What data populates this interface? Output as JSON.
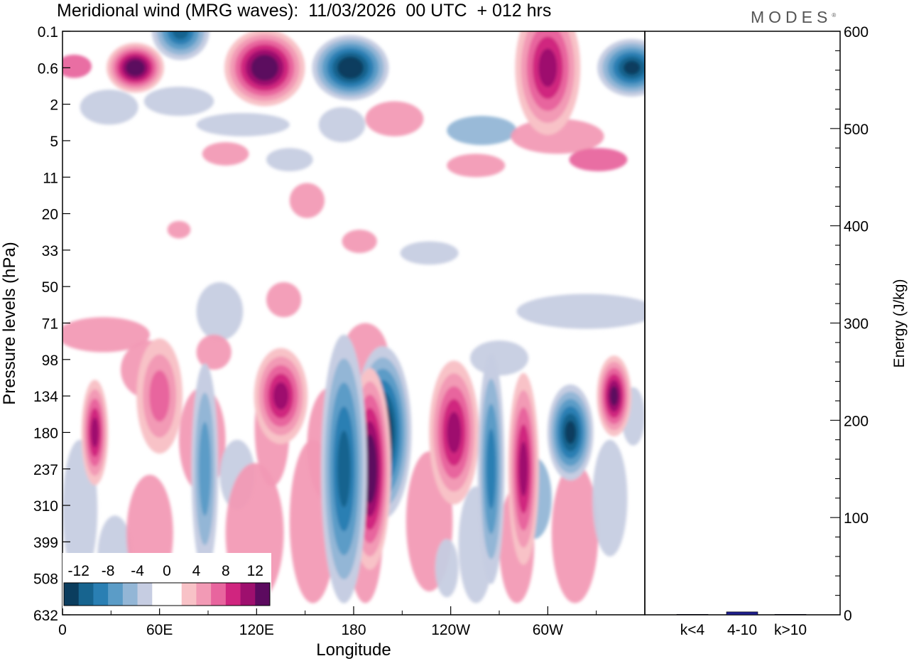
{
  "header": {
    "title": "Meridional wind (MRG waves):  11/03/2026  00 UTC  + 012 hrs",
    "brand": "MODES",
    "brand_mark": "®"
  },
  "chart_data": [
    {
      "type": "heatmap",
      "title": "Meridional wind (MRG waves):  11/03/2026  00 UTC  + 012 hrs",
      "xlabel": "Longitude",
      "ylabel": "Pressure levels (hPa)",
      "x_tick_labels": [
        "0",
        "60E",
        "120E",
        "180",
        "120W",
        "60W"
      ],
      "x_ticks_deg": [
        0,
        60,
        120,
        180,
        240,
        300
      ],
      "x_range_deg": [
        0,
        360
      ],
      "y_tick_labels": [
        "0.1",
        "0.6",
        "2",
        "5",
        "11",
        "20",
        "33",
        "50",
        "71",
        "98",
        "134",
        "180",
        "237",
        "310",
        "399",
        "508",
        "632"
      ],
      "colorbar": {
        "labels": [
          "-12",
          "-8",
          "-4",
          "0",
          "4",
          "8",
          "12"
        ],
        "levels": [
          -14,
          -12,
          -10,
          -8,
          -6,
          -4,
          -2,
          2,
          4,
          6,
          8,
          10,
          12,
          14
        ],
        "colors": [
          "#0b3d5e",
          "#17648f",
          "#2a7fb3",
          "#5b9cc7",
          "#93b6d6",
          "#c6cde2",
          "#ffffff",
          "#ffffff",
          "#f8c2c7",
          "#f29ab5",
          "#e8659e",
          "#d0257f",
          "#9e0f6e",
          "#5c0a5f"
        ]
      },
      "features": [
        {
          "lon": 45,
          "level": "0.6",
          "value": 14
        },
        {
          "lon": 125,
          "level": "0.6",
          "value": 14
        },
        {
          "lon": 178,
          "level": "0.6",
          "value": -14
        },
        {
          "lon": 352,
          "level": "0.6",
          "value": -12
        },
        {
          "lon": 73,
          "level": "0.1",
          "value": -10
        },
        {
          "lon": 300,
          "level": "0.6",
          "value": 10
        },
        {
          "lon": 198,
          "level": "180",
          "value": -14
        },
        {
          "lon": 190,
          "level": "237",
          "value": 14
        },
        {
          "lon": 174,
          "level": "237",
          "value": -10
        },
        {
          "lon": 242,
          "level": "180",
          "value": 10
        },
        {
          "lon": 314,
          "level": "180",
          "value": -12
        },
        {
          "lon": 341,
          "level": "134",
          "value": 12
        },
        {
          "lon": 20,
          "level": "180",
          "value": 10
        },
        {
          "lon": 135,
          "level": "134",
          "value": 10
        },
        {
          "lon": 88,
          "level": "237",
          "value": -6
        },
        {
          "lon": 265,
          "level": "237",
          "value": -8
        },
        {
          "lon": 285,
          "level": "237",
          "value": 10
        },
        {
          "lon": 60,
          "level": "134",
          "value": 6
        }
      ]
    },
    {
      "type": "bar",
      "categories": [
        "k<4",
        "4-10",
        "k>10"
      ],
      "values": [
        0.5,
        3,
        0.5
      ],
      "ylabel": "Energy (J/kg)",
      "ylim": [
        0,
        600
      ],
      "y_tick_labels": [
        "0",
        "100",
        "200",
        "300",
        "400",
        "500",
        "600"
      ],
      "bar_color": "#1f1f8c"
    }
  ]
}
